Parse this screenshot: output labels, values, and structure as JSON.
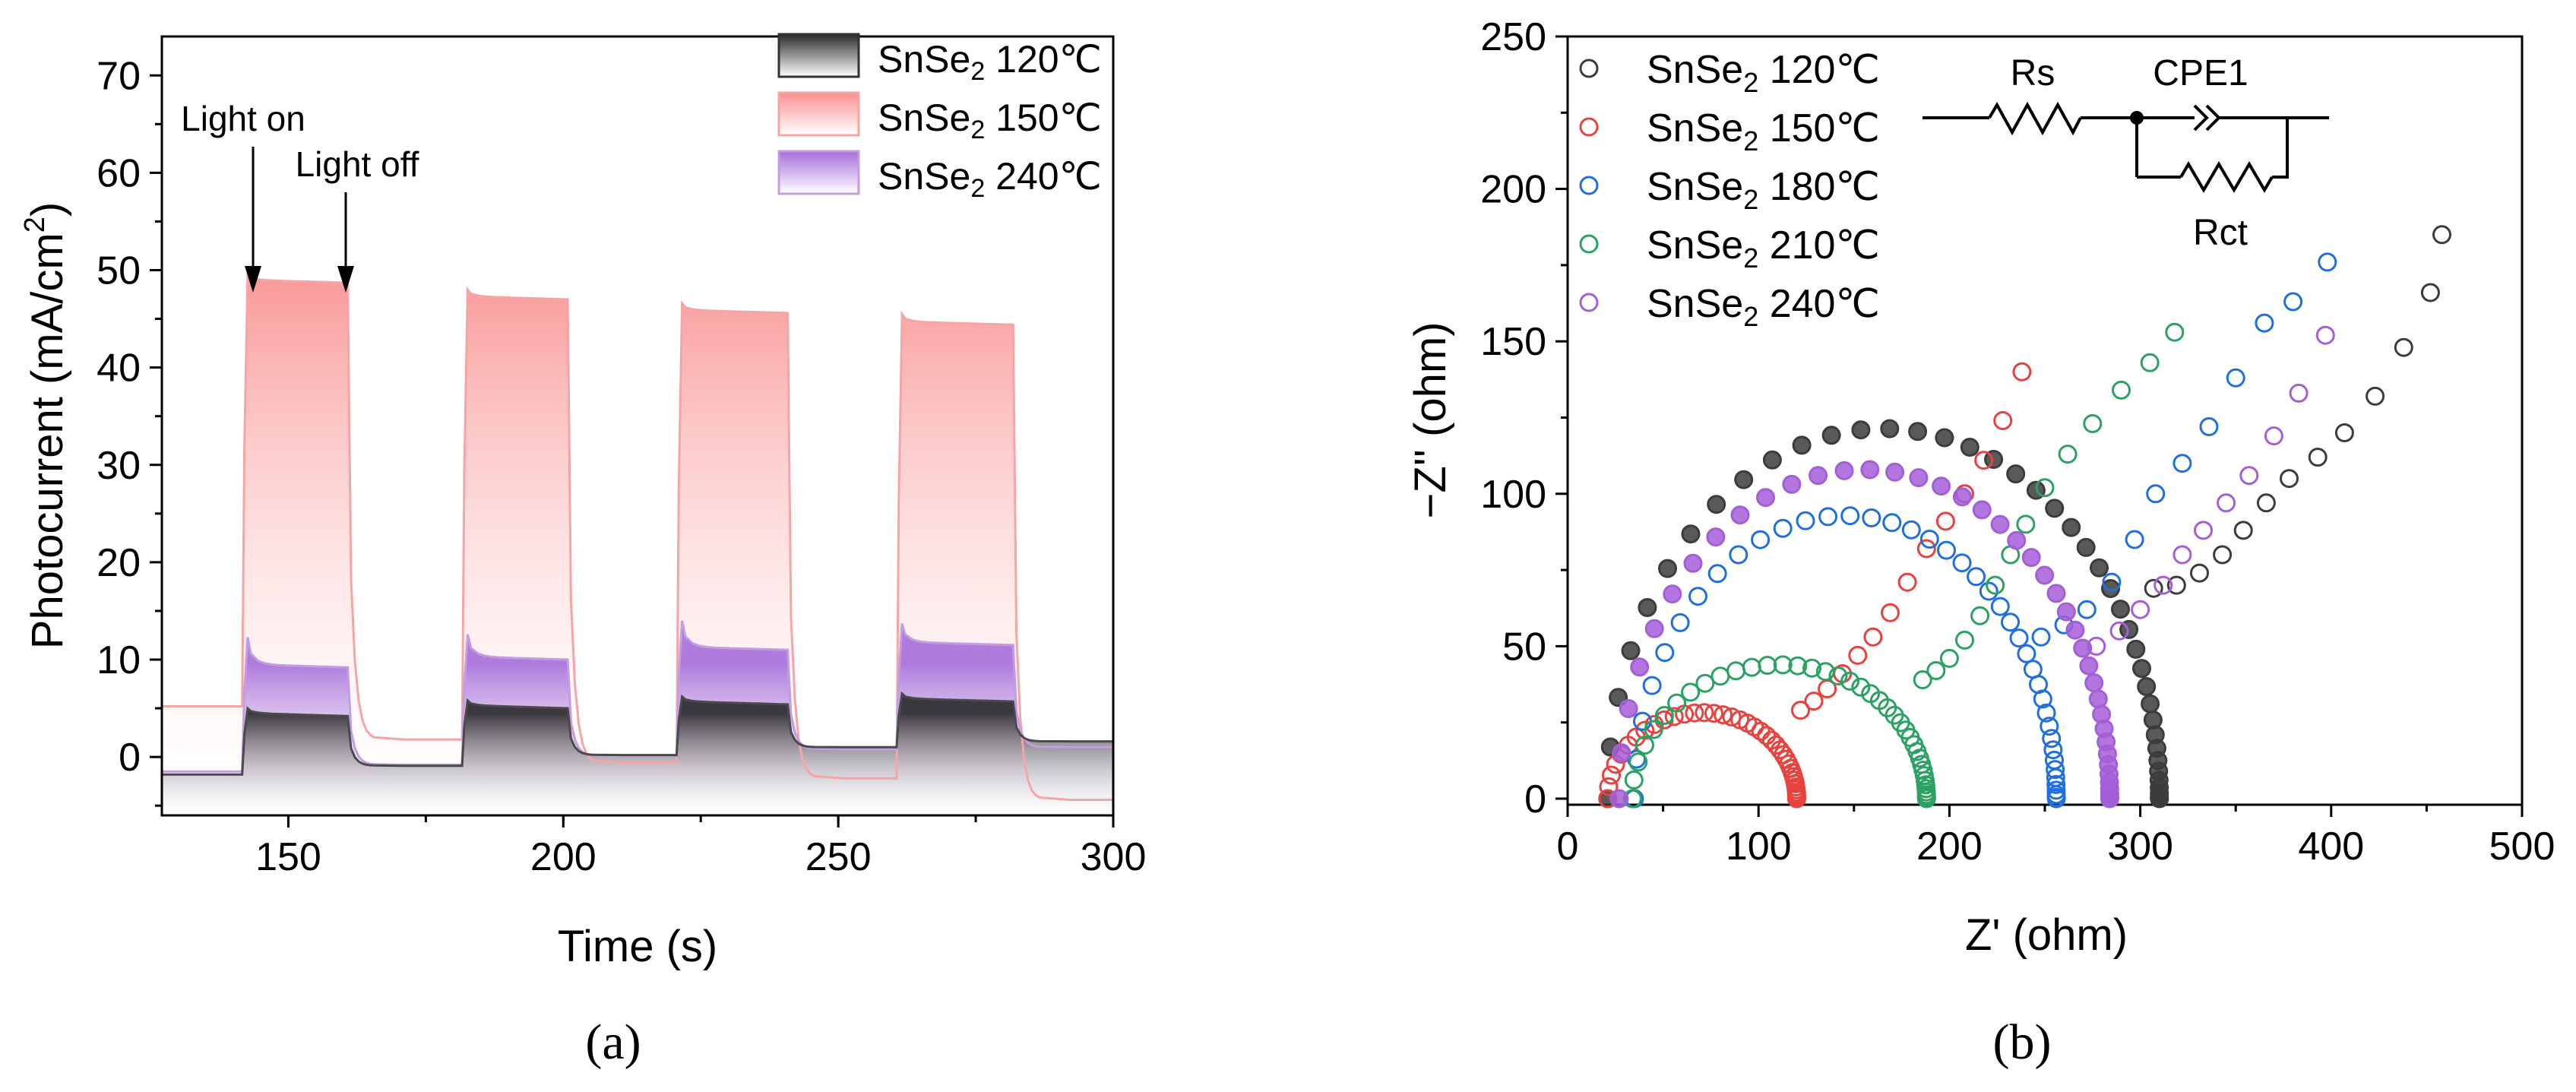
{
  "chart_data": [
    {
      "panel_id": "a",
      "type": "area",
      "caption": "(a)",
      "xlabel": "Time (s)",
      "ylabel": "Photocurrent (mA/cm",
      "ylabel_sup": "2",
      "ylabel_close": ")",
      "xlim": [
        127,
        300
      ],
      "ylim": [
        -6,
        74
      ],
      "xticks": [
        150,
        200,
        250,
        300
      ],
      "yticks": [
        0,
        10,
        20,
        30,
        40,
        50,
        60,
        70
      ],
      "annotations": [
        {
          "text": "Light on",
          "x": 145,
          "y": 66,
          "arrow_to": [
            145,
            48
          ]
        },
        {
          "text": "Light off",
          "x": 163,
          "y": 61,
          "arrow_to": [
            161,
            48
          ]
        }
      ],
      "legend": {
        "position": "top-right"
      },
      "light_on_intervals": [
        [
          142,
          161
        ],
        [
          182,
          201
        ],
        [
          221,
          241
        ],
        [
          261,
          282
        ]
      ],
      "series": [
        {
          "name": "SnSe",
          "sub": "2",
          "temp": " 120℃",
          "color": "#4a4a4a",
          "text_color": "#555555",
          "fill_top": "#2a2a2a",
          "fill_bottom": "#ffffff",
          "baseline": [
            -1.8,
            -0.9,
            0.2,
            1.0,
            1.6
          ],
          "on_level": [
            4.5,
            5.3,
            5.7,
            6.0
          ],
          "peak": [
            5.0,
            5.8,
            6.2,
            6.5
          ]
        },
        {
          "name": "SnSe",
          "sub": "2",
          "temp": " 150℃",
          "color": "#f4a6a6",
          "text_color": "#e8423f",
          "fill_top": "#f98f8f",
          "fill_bottom": "#ffffff",
          "baseline": [
            5.2,
            1.8,
            -0.6,
            -2.2,
            -4.4
          ],
          "on_level": [
            49.0,
            47.3,
            45.9,
            44.7
          ],
          "peak": [
            49.5,
            48.0,
            46.6,
            45.5
          ]
        },
        {
          "name": "SnSe",
          "sub": "2",
          "temp": " 240℃",
          "color": "#c49ce0",
          "text_color": "#a45ed8",
          "fill_top": "#a66fdc",
          "fill_bottom": "#ffffff",
          "baseline": [
            -1.5,
            -0.8,
            0.1,
            0.8,
            1.0
          ],
          "on_level": [
            9.5,
            10.3,
            11.3,
            11.8
          ],
          "peak": [
            12.3,
            12.6,
            14.0,
            13.7
          ]
        }
      ]
    },
    {
      "panel_id": "b",
      "type": "scatter",
      "caption": "(b)",
      "xlabel": "Z' (ohm)",
      "ylabel": "−Z'' (ohm)",
      "xlim": [
        0,
        500
      ],
      "ylim": [
        -2,
        250
      ],
      "xticks": [
        0,
        100,
        200,
        300,
        400,
        500
      ],
      "yticks": [
        0,
        50,
        100,
        150,
        200,
        250
      ],
      "legend": {
        "position": "top-left"
      },
      "circuit": {
        "labels": [
          "Rs",
          "CPE1",
          "Rct"
        ]
      },
      "series": [
        {
          "name": "SnSe",
          "sub": "2",
          "temp": " 120℃",
          "color": "#3c3c3c",
          "text_color": "#555555",
          "filled": true,
          "rs": 21,
          "rct": 289,
          "r_cut": 0.84,
          "tail": [
            [
              307,
              69
            ],
            [
              319,
              70
            ],
            [
              331,
              74
            ],
            [
              343,
              80
            ],
            [
              354,
              88
            ],
            [
              366,
              97
            ],
            [
              378,
              105
            ],
            [
              393,
              112
            ],
            [
              407,
              120
            ],
            [
              423,
              132
            ],
            [
              438,
              148
            ],
            [
              452,
              166
            ],
            [
              458,
              185
            ]
          ]
        },
        {
          "name": "SnSe",
          "sub": "2",
          "temp": " 150℃",
          "color": "#e8423f",
          "text_color": "#e8423f",
          "filled": false,
          "rs": 21,
          "rct": 99,
          "r_cut": 0.57,
          "tail": [
            [
              122,
              29
            ],
            [
              129,
              32
            ],
            [
              136,
              36
            ],
            [
              144,
              41
            ],
            [
              152,
              47
            ],
            [
              160,
              53
            ],
            [
              169,
              61
            ],
            [
              178,
              71
            ],
            [
              188,
              82
            ],
            [
              198,
              91
            ],
            [
              208,
              100
            ],
            [
              218,
              111
            ],
            [
              228,
              124
            ],
            [
              238,
              140
            ]
          ]
        },
        {
          "name": "SnSe",
          "sub": "2",
          "temp": " 180℃",
          "color": "#1f6fe0",
          "text_color": "#1f6fe0",
          "filled": false,
          "rs": 35,
          "rct": 221,
          "r_cut": 0.84,
          "tail": [
            [
              248,
              53
            ],
            [
              260,
              57
            ],
            [
              272,
              62
            ],
            [
              285,
              71
            ],
            [
              297,
              85
            ],
            [
              308,
              100
            ],
            [
              322,
              110
            ],
            [
              336,
              122
            ],
            [
              350,
              138
            ],
            [
              365,
              156
            ],
            [
              380,
              163
            ],
            [
              398,
              176
            ]
          ]
        },
        {
          "name": "SnSe",
          "sub": "2",
          "temp": " 210℃",
          "color": "#2ba163",
          "text_color": "#2ba163",
          "filled": false,
          "rs": 34,
          "rct": 154,
          "r_cut": 0.57,
          "tail": [
            [
              186,
              39
            ],
            [
              193,
              42
            ],
            [
              200,
              46
            ],
            [
              208,
              52
            ],
            [
              216,
              60
            ],
            [
              224,
              70
            ],
            [
              232,
              80
            ],
            [
              240,
              90
            ],
            [
              250,
              102
            ],
            [
              262,
              113
            ],
            [
              275,
              123
            ],
            [
              290,
              134
            ],
            [
              305,
              143
            ],
            [
              318,
              153
            ]
          ]
        },
        {
          "name": "SnSe",
          "sub": "2",
          "temp": " 240℃",
          "color": "#a45ed8",
          "text_color": "#a45ed8",
          "filled": true,
          "rs": 27,
          "rct": 257,
          "r_cut": 0.84,
          "tail": [
            [
              277,
              50
            ],
            [
              289,
              55
            ],
            [
              300,
              62
            ],
            [
              312,
              70
            ],
            [
              322,
              80
            ],
            [
              333,
              88
            ],
            [
              345,
              97
            ],
            [
              357,
              106
            ],
            [
              370,
              119
            ],
            [
              383,
              133
            ],
            [
              397,
              152
            ]
          ]
        }
      ]
    }
  ]
}
